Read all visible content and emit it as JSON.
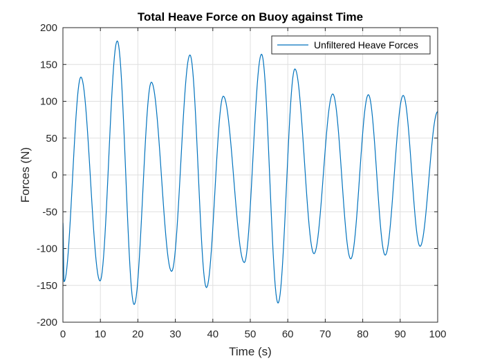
{
  "chart_data": {
    "type": "line",
    "title": "Total Heave Force on Buoy against Time",
    "xlabel": "Time (s)",
    "ylabel": "Forces (N)",
    "xlim": [
      0,
      100
    ],
    "ylim": [
      -200,
      200
    ],
    "xticks": [
      0,
      10,
      20,
      30,
      40,
      50,
      60,
      70,
      80,
      90,
      100
    ],
    "yticks": [
      -200,
      -150,
      -100,
      -50,
      0,
      50,
      100,
      150,
      200
    ],
    "grid": true,
    "legend_position": "top-right",
    "series": [
      {
        "name": "Unfiltered Heave Forces",
        "color": "#0072BD",
        "extrema": [
          [
            0,
            -65
          ],
          [
            0.3,
            -145
          ],
          [
            4.8,
            133
          ],
          [
            9.9,
            -144
          ],
          [
            14.5,
            182
          ],
          [
            19.0,
            -176
          ],
          [
            23.6,
            126
          ],
          [
            29.0,
            -131
          ],
          [
            33.9,
            163
          ],
          [
            38.3,
            -153
          ],
          [
            42.8,
            107
          ],
          [
            48.4,
            -119
          ],
          [
            53.0,
            164
          ],
          [
            57.4,
            -174
          ],
          [
            61.9,
            144
          ],
          [
            67.0,
            -107
          ],
          [
            72.0,
            110
          ],
          [
            76.8,
            -114
          ],
          [
            81.5,
            109
          ],
          [
            86.0,
            -109
          ],
          [
            90.8,
            108
          ],
          [
            95.3,
            -97
          ],
          [
            100,
            86
          ]
        ]
      }
    ]
  }
}
